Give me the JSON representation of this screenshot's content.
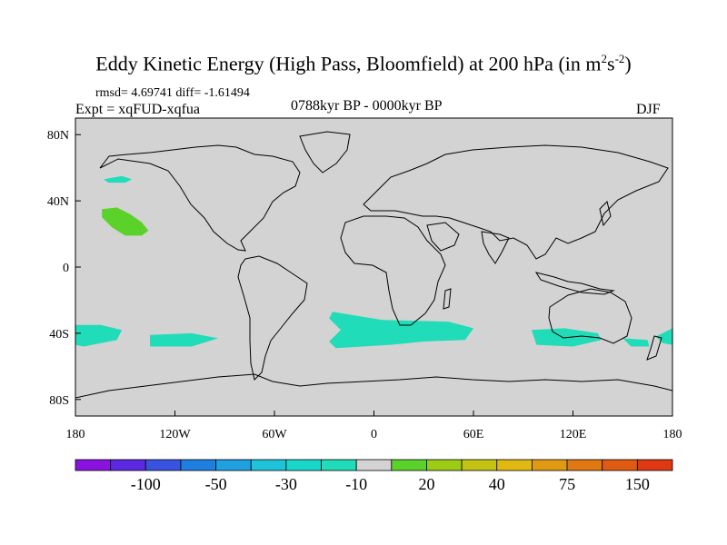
{
  "chart_data": {
    "type": "heatmap",
    "title": "Eddy Kinetic Energy (High Pass, Bloomfield) at 200 hPa (in m",
    "title_unit_sup1": "2",
    "title_unit_mid": "s",
    "title_unit_sup2": "-2",
    "title_unit_end": ")",
    "stats": "rmsd= 4.69741 diff= -1.61494",
    "experiment": "Expt = xqFUD-xqfua",
    "period": "0788kyr BP - 0000kyr BP",
    "season": "DJF",
    "xlim": [
      -180,
      180
    ],
    "ylim": [
      -90,
      90
    ],
    "x_ticks": [
      {
        "value": -180,
        "label": "180"
      },
      {
        "value": -120,
        "label": "120W"
      },
      {
        "value": -60,
        "label": "60W"
      },
      {
        "value": 0,
        "label": "0"
      },
      {
        "value": 60,
        "label": "60E"
      },
      {
        "value": 120,
        "label": "120E"
      },
      {
        "value": 180,
        "label": "180"
      }
    ],
    "y_ticks": [
      {
        "value": 80,
        "label": "80N"
      },
      {
        "value": 40,
        "label": "40N"
      },
      {
        "value": 0,
        "label": "0"
      },
      {
        "value": -40,
        "label": "40S"
      },
      {
        "value": -80,
        "label": "80S"
      }
    ],
    "background_color": "#d3d3d3",
    "colorbar": {
      "colors": [
        "#8a12e0",
        "#5c28e0",
        "#3a52e0",
        "#1f7fe0",
        "#1fa0e0",
        "#1fc3d8",
        "#1ad7cc",
        "#20dcb8",
        "#d3d3d3",
        "#5bd22a",
        "#9ccc14",
        "#c4c212",
        "#e0b812",
        "#e09a12",
        "#e07812",
        "#e05a12",
        "#e03812"
      ],
      "labels": [
        {
          "boundary": 2,
          "text": "-100"
        },
        {
          "boundary": 4,
          "text": "-50"
        },
        {
          "boundary": 6,
          "text": "-30"
        },
        {
          "boundary": 8,
          "text": "-10"
        },
        {
          "boundary": 10,
          "text": "20"
        },
        {
          "boundary": 12,
          "text": "40"
        },
        {
          "boundary": 14,
          "text": "75"
        },
        {
          "boundary": 16,
          "text": "150"
        }
      ]
    },
    "regions": [
      {
        "name": "north-pacific-patch",
        "level": "10",
        "color": "#5bd22a",
        "points": [
          [
            -164,
            35
          ],
          [
            -155,
            36
          ],
          [
            -147,
            32
          ],
          [
            -140,
            27
          ],
          [
            -136,
            22
          ],
          [
            -140,
            19
          ],
          [
            -150,
            19
          ],
          [
            -158,
            24
          ],
          [
            -164,
            30
          ]
        ]
      },
      {
        "name": "gulf-alaska-patch",
        "level": "-10",
        "color": "#20dcb8",
        "points": [
          [
            -163,
            53
          ],
          [
            -152,
            55
          ],
          [
            -146,
            53
          ],
          [
            -150,
            51
          ],
          [
            -160,
            51
          ]
        ]
      },
      {
        "name": "south-pacific-west-patch",
        "level": "-10",
        "color": "#20dcb8",
        "points": [
          [
            -180,
            -35
          ],
          [
            -165,
            -35
          ],
          [
            -152,
            -38
          ],
          [
            -155,
            -44
          ],
          [
            -175,
            -48
          ],
          [
            -180,
            -47
          ]
        ]
      },
      {
        "name": "south-pacific-mid-patch",
        "level": "-10",
        "color": "#20dcb8",
        "points": [
          [
            -135,
            -41
          ],
          [
            -110,
            -40
          ],
          [
            -94,
            -43
          ],
          [
            -110,
            -48
          ],
          [
            -135,
            -48
          ]
        ]
      },
      {
        "name": "south-atlantic-indian-patch",
        "level": "-10",
        "color": "#20dcb8",
        "points": [
          [
            -25,
            -27
          ],
          [
            5,
            -32
          ],
          [
            45,
            -33
          ],
          [
            60,
            -37
          ],
          [
            55,
            -44
          ],
          [
            30,
            -45
          ],
          [
            10,
            -47
          ],
          [
            -23,
            -49
          ],
          [
            -27,
            -45
          ],
          [
            -20,
            -38
          ],
          [
            -27,
            -31
          ]
        ]
      },
      {
        "name": "south-indian-east-patch",
        "level": "-10",
        "color": "#20dcb8",
        "points": [
          [
            95,
            -38
          ],
          [
            115,
            -37
          ],
          [
            135,
            -40
          ],
          [
            137,
            -44
          ],
          [
            120,
            -48
          ],
          [
            98,
            -47
          ]
        ]
      },
      {
        "name": "tasman-patch",
        "level": "-10",
        "color": "#20dcb8",
        "points": [
          [
            150,
            -43
          ],
          [
            165,
            -44
          ],
          [
            166,
            -48
          ],
          [
            155,
            -48
          ]
        ]
      },
      {
        "name": "south-pacific-east-patch",
        "level": "-10",
        "color": "#20dcb8",
        "points": [
          [
            170,
            -42
          ],
          [
            180,
            -37
          ],
          [
            180,
            -47
          ],
          [
            174,
            -46
          ]
        ]
      }
    ]
  }
}
